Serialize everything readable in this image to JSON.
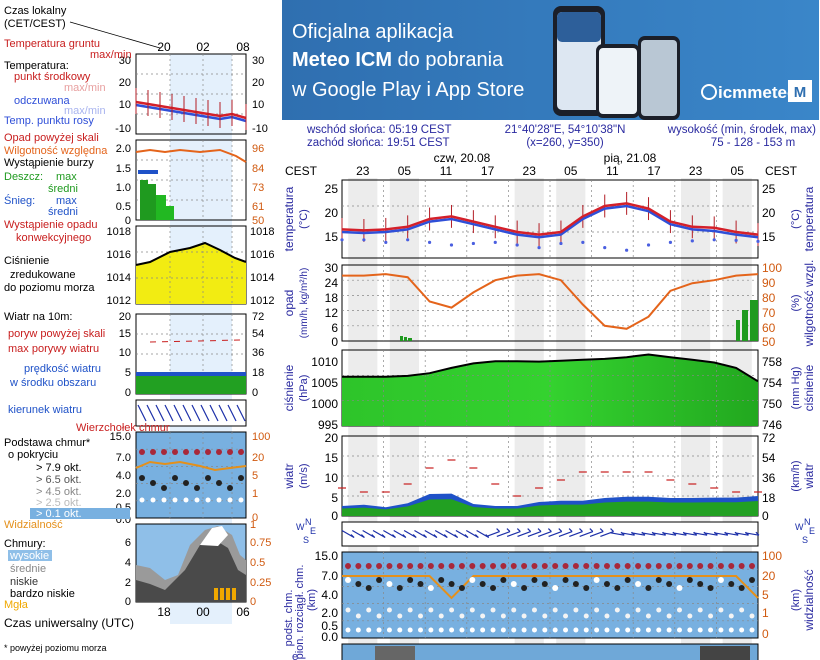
{
  "banner": {
    "line1": "Oficjalna aplikacja",
    "line2a": "Meteo ICM",
    "line2b": " do pobrania",
    "line3": "w Google Play i App Store",
    "logo_text": "icmmeteo",
    "logo_badge": "M",
    "bg_color": "#2f73b5"
  },
  "info": {
    "sunrise": "wschód słońca: 05:19 CEST",
    "sunset": "zachód słońca: 19:51 CEST",
    "coords": "21°40'28\"E, 54°10'38\"N",
    "grid": "(x=260, y=350)",
    "height_label": "wysokość (min, środek, max)",
    "height_values": "75 - 128 - 153 m"
  },
  "legend": {
    "time_local": [
      "Czas lokalny",
      "(CET/CEST)"
    ],
    "time_utc": "Czas uniwersalny (UTC)",
    "footnote": "* powyżej poziomu morza",
    "ground_temp": [
      "Temperatura gruntu",
      "max/min"
    ],
    "temp_title": "Temperatura:",
    "temp_mid": "punkt środkowy",
    "temp_max_min": "max/min",
    "temp_felt": "odczuwana",
    "temp_felt_mm": "max/min",
    "temp_dew": "Temp. punktu rosy",
    "precip_above": "Opad powyżej skali",
    "humidity": "Wilgotność względna",
    "storm": "Wystąpienie burzy",
    "rain": "Deszcz:",
    "rain_max": "max",
    "rain_avg": "średni",
    "snow": "Śnieg:",
    "snow_max": "max",
    "snow_avg": "średni",
    "conv": [
      "Wystąpienie opadu",
      "konwekcyjnego"
    ],
    "pressure": [
      "Ciśnienie",
      "zredukowane",
      "do poziomu morza"
    ],
    "wind_title": "Wiatr na 10m:",
    "gust_above": "poryw powyżej skali",
    "gust_max": "max porywy wiatru",
    "wind_speed": [
      "prędkość wiatru",
      "w środku obszaru"
    ],
    "wind_dir": "kierunek wiatru",
    "cloud_top": "Wierzchołek chmur",
    "cloud_base": [
      "Podstawa chmur*",
      "o pokryciu"
    ],
    "okt": [
      "> 7.9 okt.",
      "> 6.5 okt.",
      "> 4.5 okt.",
      "> 2.5 okt.",
      "> 0.1 okt."
    ],
    "visibility": "Widzialność",
    "clouds_title": "Chmury:",
    "clouds_levels": [
      "wysokie",
      "średnie",
      "niskie",
      "bardzo niskie"
    ],
    "fog": "Mgła"
  },
  "main_axes": {
    "cest_left": "CEST",
    "cest_right": "CEST",
    "day1": "czw, 20.08",
    "day2": "pią, 21.08",
    "hours_top": [
      "23",
      "05",
      "11",
      "17",
      "23",
      "05",
      "11",
      "17",
      "23",
      "05"
    ],
    "left_titles": {
      "temp": [
        "temperatura",
        "(°C)"
      ],
      "precip": [
        "opad",
        "(mm/h, kg/m²/h)"
      ],
      "pressure": [
        "ciśnienie",
        "(hPa)"
      ],
      "wind": [
        "wiatr",
        "(m/s)"
      ],
      "cloud": [
        "podst. chm.",
        "pion. rozciągł. chm.",
        "(km)"
      ],
      "bottom": [
        "e"
      ]
    },
    "right_titles": {
      "temp": [
        "temperatura",
        "(°C)"
      ],
      "hum": [
        "wilgotność wzgl.",
        "(%)"
      ],
      "pressure": [
        "ciśnienie",
        "(mm Hg)"
      ],
      "wind": [
        "wiatr",
        "(km/h)"
      ],
      "vis": [
        "widzialność",
        "(km)"
      ]
    },
    "temp_ticks_left": [
      "25",
      "20",
      "15"
    ],
    "temp_ticks_right": [
      "25",
      "20",
      "15"
    ],
    "precip_ticks_left": [
      "30",
      "24",
      "18",
      "12",
      "6",
      "0"
    ],
    "hum_ticks_right": [
      "100",
      "90",
      "80",
      "70",
      "60",
      "50"
    ],
    "pres_ticks_left": [
      "1010",
      "1005",
      "1000",
      "995"
    ],
    "pres_ticks_right": [
      "758",
      "754",
      "750",
      "746"
    ],
    "wind_ticks_left": [
      "20",
      "15",
      "10",
      "5",
      "0"
    ],
    "wind_ticks_right": [
      "72",
      "54",
      "36",
      "18",
      "0"
    ],
    "cloud_ticks_left": [
      "15.0",
      "7.0",
      "4.0",
      "2.0",
      "0.5",
      "0.0"
    ],
    "vis_ticks_right": [
      "100",
      "20",
      "5",
      "1",
      "0"
    ]
  },
  "mini_axes": {
    "time_top": [
      "20",
      "02",
      "08"
    ],
    "time_bottom": [
      "18",
      "00",
      "06"
    ],
    "ground_ticks": [
      "30",
      "20",
      "10",
      "0",
      "-10"
    ],
    "ground_ticks_r": [
      "30",
      "20",
      "10",
      "0",
      "-10"
    ],
    "precip_ticks_l": [
      "2.0",
      "1.5",
      "1.0",
      "0.5",
      "0"
    ],
    "hum_ticks_r": [
      "96",
      "84",
      "73",
      "61",
      "50"
    ],
    "pres_ticks_l": [
      "1018",
      "1016",
      "1014",
      "1012"
    ],
    "pres_ticks_r": [
      "1018",
      "1016",
      "1014",
      "1012"
    ],
    "wind_ticks_l": [
      "20",
      "15",
      "10",
      "5",
      "0"
    ],
    "wind_ticks_r": [
      "72",
      "54",
      "36",
      "18",
      "0"
    ],
    "cloud_ticks_l": [
      "15.0",
      "7.0",
      "4.0",
      "2.0",
      "0.5",
      "0.0"
    ],
    "vis_ticks_r": [
      "100",
      "20",
      "5",
      "1",
      "0"
    ],
    "clouds_ticks_l": [
      "6",
      "4",
      "2",
      "0"
    ],
    "clouds_ticks_r": [
      "0.75",
      "0.5",
      "0.25",
      "0"
    ],
    "clouds_top_r": "1"
  },
  "chart_data": [
    {
      "type": "line",
      "title": "",
      "ylabel": "temperatura (°C)",
      "ylim": [
        12,
        27
      ],
      "hours_from_start": [
        0,
        3,
        6,
        9,
        12,
        15,
        18,
        21,
        24,
        27,
        30,
        33,
        36,
        39,
        42,
        45,
        48,
        51,
        54,
        57
      ],
      "series": [
        {
          "name": "punkt środkowy",
          "values": [
            17.5,
            17.3,
            17.5,
            18.0,
            19.5,
            20.0,
            19.0,
            18.0,
            17.0,
            16.5,
            17.0,
            20.0,
            22.0,
            22.5,
            21.5,
            19.0,
            18.0,
            17.8,
            17.0,
            16.5
          ]
        },
        {
          "name": "odczuwana",
          "values": [
            17.0,
            16.8,
            17.0,
            17.5,
            19.0,
            19.5,
            18.5,
            17.5,
            16.5,
            16.0,
            16.5,
            19.5,
            21.5,
            22.0,
            21.0,
            18.5,
            17.5,
            17.2,
            16.5,
            16.0
          ]
        },
        {
          "name": "Temp. punktu rosy",
          "values": [
            15.5,
            15.5,
            15.0,
            15.5,
            15.0,
            14.5,
            14.8,
            15.0,
            14.5,
            14.0,
            14.8,
            15.0,
            14.0,
            13.5,
            14.5,
            15.0,
            15.3,
            15.5,
            15.4,
            15.2
          ]
        }
      ]
    },
    {
      "type": "line",
      "ylabel": "wilgotność wzgl. (%)",
      "ylim": [
        50,
        100
      ],
      "hours_from_start": [
        0,
        3,
        6,
        9,
        12,
        15,
        18,
        21,
        24,
        27,
        30,
        33,
        36,
        39,
        42,
        45,
        48,
        51,
        54,
        57
      ],
      "series": [
        {
          "name": "Wilgotność względna",
          "values": [
            93,
            93,
            94,
            92,
            76,
            72,
            82,
            90,
            93,
            94,
            90,
            74,
            60,
            58,
            66,
            83,
            88,
            90,
            93,
            94
          ]
        }
      ]
    },
    {
      "type": "area",
      "ylabel": "ciśnienie (hPa)",
      "ylim": [
        995,
        1012
      ],
      "hours_from_start": [
        0,
        3,
        6,
        9,
        12,
        15,
        18,
        21,
        24,
        27,
        30,
        33,
        36,
        39,
        42,
        45,
        48,
        51,
        54,
        57
      ],
      "values": [
        1006.0,
        1006.0,
        1006.0,
        1006.2,
        1006.8,
        1008.0,
        1009.0,
        1009.5,
        1009.5,
        1009.4,
        1009.6,
        1009.8,
        1010.0,
        1010.4,
        1011.0,
        1010.4,
        1009.8,
        1009.2,
        1008.0,
        1005.0
      ]
    },
    {
      "type": "area",
      "ylabel": "wiatr (m/s)",
      "ylim": [
        0,
        20
      ],
      "hours_from_start": [
        0,
        3,
        6,
        9,
        12,
        15,
        18,
        21,
        24,
        27,
        30,
        33,
        36,
        39,
        42,
        45,
        48,
        51,
        54,
        57
      ],
      "values": [
        2.5,
        2.8,
        2.2,
        3.2,
        5.5,
        5.6,
        3.0,
        2.5,
        2.5,
        3.5,
        3.8,
        3.8,
        4.5,
        4.8,
        4.8,
        4.5,
        4.5,
        4.6,
        4.6,
        5.0
      ],
      "series": [
        {
          "name": "max porywy wiatru",
          "values": [
            7,
            6,
            6,
            8,
            12,
            14,
            12,
            8,
            5,
            7,
            9,
            11,
            11,
            11,
            11,
            9,
            8,
            7,
            6,
            6
          ]
        }
      ]
    },
    {
      "type": "scatter",
      "ylabel": "podst. chm. (km)",
      "series": [
        {
          "name": "widzialność",
          "values": [
            20,
            20,
            20,
            20,
            20,
            5,
            20,
            20,
            20,
            20,
            20,
            20,
            20,
            20,
            20,
            20,
            20,
            20,
            20,
            5
          ]
        }
      ]
    }
  ]
}
